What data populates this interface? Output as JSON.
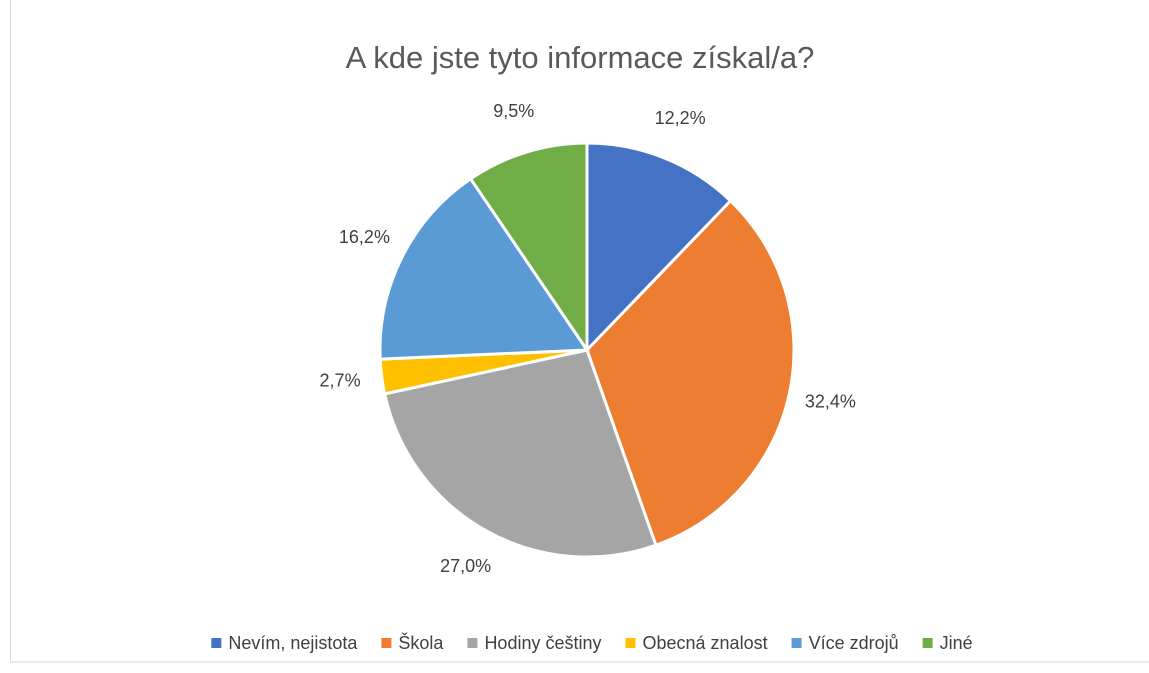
{
  "chart_data": {
    "type": "pie",
    "title": "A kde jste tyto informace získal/a?",
    "categories": [
      "Nevím, nejistota",
      "Škola",
      "Hodiny češtiny",
      "Obecná znalost",
      "Více zdrojů",
      "Jiné"
    ],
    "values": [
      12.2,
      32.4,
      27.0,
      2.7,
      16.2,
      9.5
    ],
    "value_labels": [
      "12,2%",
      "32,4%",
      "27,0%",
      "2,7%",
      "16,2%",
      "9,5%"
    ],
    "colors": [
      "#4472c4",
      "#ed7d31",
      "#a5a5a5",
      "#ffc000",
      "#5b9bd5",
      "#70ad47"
    ],
    "legend": "bottom"
  }
}
